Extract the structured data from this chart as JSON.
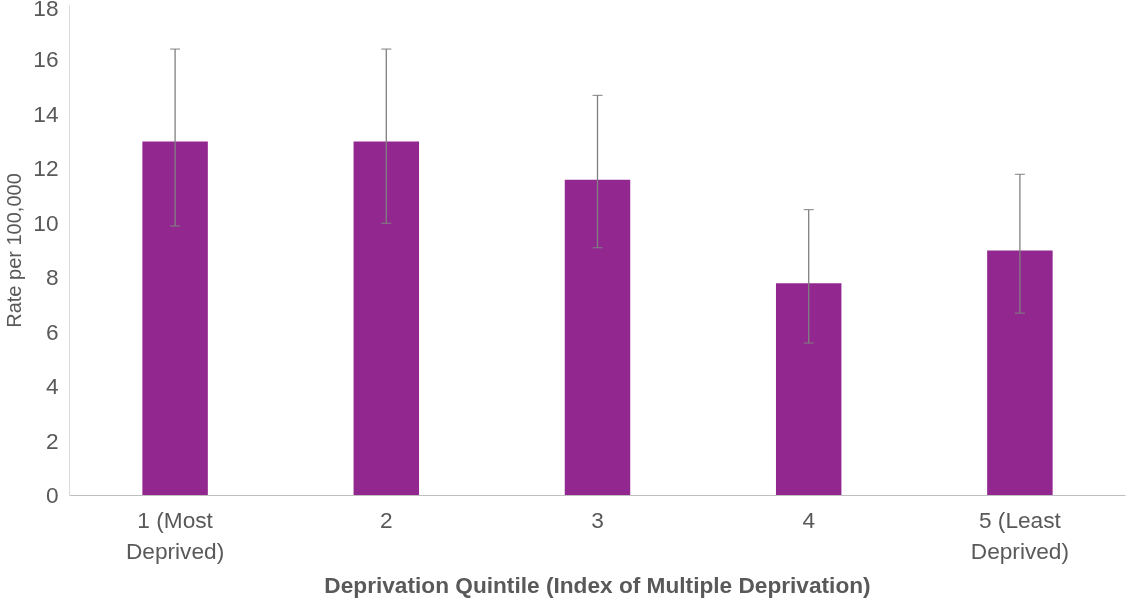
{
  "chart_data": {
    "type": "bar",
    "xlabel": "Deprivation Quintile (Index of Multiple Deprivation)",
    "ylabel": "Rate per 100,000",
    "categories": [
      "1 (Most Deprived)",
      "2",
      "3",
      "4",
      "5 (Least Deprived)"
    ],
    "values": [
      13.0,
      13.0,
      11.6,
      7.8,
      9.0
    ],
    "errors": [
      [
        9.9,
        16.4
      ],
      [
        10.0,
        16.4
      ],
      [
        9.1,
        14.7
      ],
      [
        5.6,
        10.5
      ],
      [
        6.7,
        11.8
      ]
    ],
    "color": "#92278f",
    "ylim": [
      0,
      18
    ],
    "yticks": [
      0,
      2,
      4,
      6,
      8,
      10,
      12,
      14,
      16,
      18
    ],
    "grid": false
  }
}
